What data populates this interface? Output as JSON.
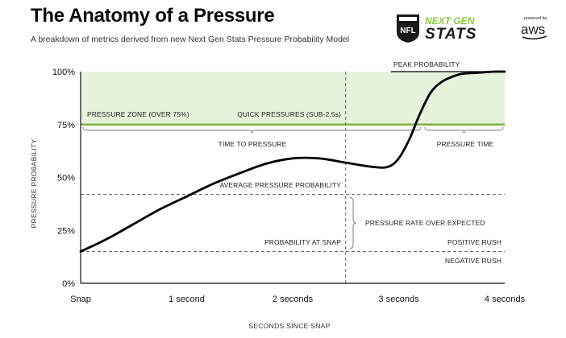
{
  "header": {
    "title": "The Anatomy of a Pressure",
    "subtitle": "A breakdown of metrics derived from new Next Gen Stats Pressure Probability Model"
  },
  "logos": {
    "league": "NFL",
    "brand_line1": "NEXT GEN",
    "brand_line2": "STATS",
    "powered_by": "powered by",
    "sponsor": "aws"
  },
  "colors": {
    "zone_fill": "#e6f2dc",
    "zone_line": "#7cb342",
    "curve": "#000000",
    "dashed": "#555555",
    "brand_green": "#8dc63f"
  },
  "chart_data": {
    "type": "line",
    "xlabel": "SECONDS SINCE SNAP",
    "ylabel": "PRESSURE PROBABILITY",
    "xlim": [
      0,
      4
    ],
    "ylim": [
      0,
      1
    ],
    "x_ticks": [
      {
        "value": 0,
        "label": "Snap"
      },
      {
        "value": 1,
        "label": "1 second"
      },
      {
        "value": 2,
        "label": "2 seconds"
      },
      {
        "value": 3,
        "label": "3 seconds"
      },
      {
        "value": 4,
        "label": "4 seconds"
      }
    ],
    "y_ticks": [
      {
        "value": 0,
        "label": "0%"
      },
      {
        "value": 0.25,
        "label": "25%"
      },
      {
        "value": 0.5,
        "label": "50%"
      },
      {
        "value": 0.75,
        "label": "75%"
      },
      {
        "value": 1,
        "label": "100%"
      }
    ],
    "series": [
      {
        "x": [
          0,
          0.25,
          0.5,
          0.75,
          1.0,
          1.25,
          1.5,
          1.75,
          2.0,
          2.25,
          2.5,
          2.75,
          2.9,
          3.0,
          3.1,
          3.2,
          3.3,
          3.4,
          3.5,
          3.6,
          3.75,
          3.9,
          4.0
        ],
        "y": [
          0.15,
          0.21,
          0.28,
          0.35,
          0.41,
          0.47,
          0.52,
          0.565,
          0.59,
          0.59,
          0.57,
          0.55,
          0.55,
          0.59,
          0.68,
          0.8,
          0.9,
          0.95,
          0.975,
          0.99,
          0.995,
          1.0,
          1.0
        ]
      }
    ],
    "pressure_zone": {
      "threshold": 0.75,
      "label": "PRESSURE ZONE (OVER 75%)"
    },
    "quick_pressures": {
      "label": "QUICK PRESSURES (SUB-2.5s)",
      "divider_x": 2.5
    },
    "average_pressure_probability": {
      "value": 0.42,
      "label": "AVERAGE PRESSURE PROBABILITY"
    },
    "probability_at_snap": {
      "value": 0.15,
      "label": "PROBABILITY AT SNAP"
    },
    "annotations": {
      "peak_probability": "PEAK PROBABILITY",
      "time_to_pressure": "TIME TO PRESSURE",
      "pressure_time": "PRESSURE TIME",
      "pressure_rate_over_expected": "PRESSURE RATE OVER EXPECTED",
      "positive_rush": "POSITIVE RUSH",
      "negative_rush": "NEGATIVE RUSH"
    },
    "grid": false,
    "legend": "none"
  }
}
